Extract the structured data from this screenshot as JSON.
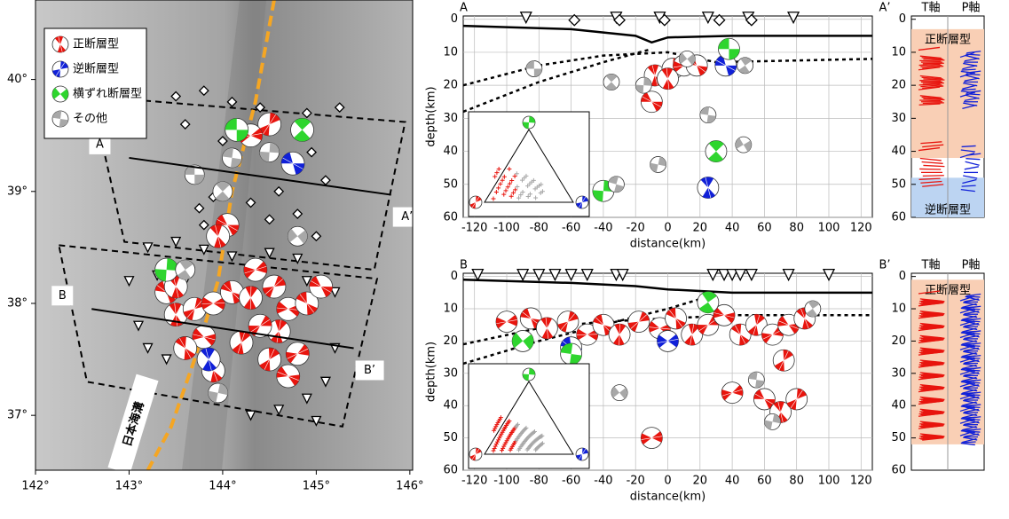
{
  "map": {
    "xlim": [
      142,
      146.03
    ],
    "ylim": [
      36.51,
      40.71
    ],
    "xticks": [
      {
        "value": 142,
        "label": "142°"
      },
      {
        "value": 143,
        "label": "143°"
      },
      {
        "value": 144,
        "label": "144°"
      },
      {
        "value": 145,
        "label": "145°"
      },
      {
        "value": 146,
        "label": "146°"
      }
    ],
    "yticks": [
      {
        "value": 37,
        "label": "37°"
      },
      {
        "value": 38,
        "label": "38°"
      },
      {
        "value": 39,
        "label": "39°"
      },
      {
        "value": 40,
        "label": "40°"
      }
    ],
    "legend": [
      {
        "label": "正断層型",
        "color": "#e8150e"
      },
      {
        "label": "逆断層型",
        "color": "#1020d8"
      },
      {
        "label": "横ずれ断層型",
        "color": "#2ed52e"
      },
      {
        "label": "その他",
        "color": "#a8a8a8"
      }
    ],
    "trench_label": "日本海溝",
    "profiles": [
      {
        "start": "A",
        "end": "A’",
        "from": [
          143,
          39.3
        ],
        "to": [
          145.8,
          38.97
        ]
      },
      {
        "start": "B",
        "end": "B’",
        "from": [
          142.6,
          37.95
        ],
        "to": [
          145.4,
          37.6
        ]
      }
    ],
    "boxes": [
      [
        [
          142.6,
          39.85
        ],
        [
          145.95,
          39.62
        ],
        [
          145.62,
          38.3
        ],
        [
          142.95,
          38.55
        ]
      ],
      [
        [
          142.25,
          38.52
        ],
        [
          145.65,
          38.22
        ],
        [
          145.28,
          36.9
        ],
        [
          142.55,
          37.3
        ]
      ]
    ],
    "trench": [
      [
        144.55,
        40.71
      ],
      [
        144.35,
        39.8
      ],
      [
        144.1,
        39.0
      ],
      [
        143.95,
        38.2
      ],
      [
        143.7,
        37.5
      ],
      [
        143.45,
        36.9
      ],
      [
        143.2,
        36.51
      ]
    ],
    "events": {
      "normal": [
        [
          144.05,
          38.7
        ],
        [
          143.95,
          38.6
        ],
        [
          144.5,
          39.6
        ],
        [
          144.3,
          39.5
        ],
        [
          143.4,
          38.1
        ],
        [
          143.5,
          37.9
        ],
        [
          143.7,
          37.95
        ],
        [
          143.9,
          38.0
        ],
        [
          144.1,
          38.1
        ],
        [
          144.3,
          38.05
        ],
        [
          144.55,
          38.15
        ],
        [
          144.7,
          37.95
        ],
        [
          144.9,
          38.0
        ],
        [
          144.6,
          37.75
        ],
        [
          144.4,
          37.8
        ],
        [
          143.8,
          37.7
        ],
        [
          143.6,
          37.6
        ],
        [
          144.2,
          37.65
        ],
        [
          144.8,
          37.55
        ],
        [
          144.7,
          37.35
        ],
        [
          143.9,
          37.4
        ],
        [
          144.5,
          37.5
        ],
        [
          144.35,
          38.3
        ],
        [
          145.05,
          38.15
        ],
        [
          143.5,
          38.15
        ]
      ],
      "reverse": [
        [
          144.75,
          39.25
        ],
        [
          143.85,
          37.5
        ]
      ],
      "strike_slip": [
        [
          144.15,
          39.55
        ],
        [
          144.85,
          39.55
        ],
        [
          143.4,
          38.3
        ]
      ],
      "other": [
        [
          143.7,
          39.15
        ],
        [
          144.0,
          39.0
        ],
        [
          144.5,
          39.35
        ],
        [
          144.8,
          38.6
        ],
        [
          144.1,
          39.3
        ],
        [
          143.6,
          38.3
        ],
        [
          143.95,
          37.2
        ]
      ]
    },
    "stations": [
      [
        143.2,
        38.5
      ],
      [
        143.5,
        38.55
      ],
      [
        143.8,
        38.48
      ],
      [
        144.1,
        38.42
      ],
      [
        144.5,
        38.45
      ],
      [
        144.8,
        38.4
      ],
      [
        143.0,
        38.2
      ],
      [
        143.3,
        38.25
      ],
      [
        143.6,
        38.2
      ],
      [
        144.9,
        38.2
      ],
      [
        145.2,
        38.1
      ],
      [
        143.1,
        37.8
      ],
      [
        145.2,
        37.6
      ],
      [
        145.1,
        37.3
      ],
      [
        144.9,
        37.15
      ],
      [
        144.6,
        37.05
      ],
      [
        144.3,
        37.0
      ],
      [
        145.0,
        36.95
      ],
      [
        143.4,
        37.5
      ],
      [
        143.2,
        37.6
      ]
    ],
    "diamonds": [
      [
        143.5,
        39.85
      ],
      [
        143.8,
        39.9
      ],
      [
        144.1,
        39.8
      ],
      [
        144.4,
        39.75
      ],
      [
        144.9,
        39.7
      ],
      [
        145.25,
        39.75
      ],
      [
        143.6,
        39.6
      ],
      [
        144.0,
        39.45
      ],
      [
        144.95,
        39.35
      ],
      [
        145.1,
        39.1
      ],
      [
        144.6,
        39.0
      ],
      [
        143.9,
        38.95
      ],
      [
        143.75,
        38.85
      ],
      [
        144.3,
        38.9
      ],
      [
        144.8,
        38.8
      ],
      [
        143.8,
        38.7
      ],
      [
        144.5,
        38.75
      ],
      [
        145.0,
        38.6
      ]
    ]
  },
  "sections": [
    {
      "start": "A",
      "end": "A’",
      "xlabel": "distance(km)",
      "ylabel": "depth(km)",
      "xlim": [
        -127,
        127
      ],
      "ylim": [
        -1,
        60
      ],
      "xticks": [
        -120,
        -100,
        -80,
        -60,
        -40,
        -20,
        0,
        20,
        40,
        60,
        80,
        100,
        120
      ],
      "yticks": [
        0,
        10,
        20,
        30,
        40,
        50,
        60
      ],
      "profile": [
        [
          -127,
          2
        ],
        [
          -60,
          3
        ],
        [
          -20,
          5
        ],
        [
          -10,
          7
        ],
        [
          0,
          5.5
        ],
        [
          40,
          5
        ],
        [
          127,
          5
        ]
      ],
      "slabs": [
        [
          [
            -127,
            20
          ],
          [
            -80,
            14
          ],
          [
            -40,
            11
          ],
          [
            0,
            10
          ],
          [
            30,
            13
          ],
          [
            127,
            12
          ]
        ],
        [
          [
            -127,
            28
          ],
          [
            -80,
            19
          ],
          [
            -40,
            13
          ],
          [
            -10,
            9
          ]
        ]
      ],
      "stations": [
        -88,
        -32,
        -5,
        25,
        50,
        78
      ],
      "diamonds": [
        -58,
        -30,
        -2,
        32,
        52
      ],
      "events": {
        "normal": [
          [
            -10,
            25
          ],
          [
            -8,
            17
          ],
          [
            3,
            15
          ],
          [
            10,
            14
          ],
          [
            18,
            14
          ],
          [
            0,
            18
          ]
        ],
        "reverse": [
          [
            36,
            14
          ],
          [
            25,
            51
          ]
        ],
        "strike_slip": [
          [
            38,
            9
          ],
          [
            30,
            40
          ],
          [
            -40,
            52
          ]
        ],
        "other": [
          [
            -83,
            15
          ],
          [
            -35,
            19
          ],
          [
            -15,
            20
          ],
          [
            12,
            12
          ],
          [
            25,
            29
          ],
          [
            48,
            14
          ],
          [
            -6,
            44
          ],
          [
            47,
            38
          ],
          [
            -32,
            50
          ]
        ]
      },
      "axes_panel": {
        "t_label": "T軸",
        "p_label": "P軸",
        "zones": [
          {
            "label": "正断層型",
            "from": 3,
            "to": 42,
            "color": "#f9cfb5"
          },
          {
            "label": "逆断層型",
            "from": 48,
            "to": 60,
            "color": "#bcd4f2"
          }
        ]
      }
    },
    {
      "start": "B",
      "end": "B’",
      "xlabel": "distance(km)",
      "ylabel": "depth(km)",
      "xlim": [
        -127,
        127
      ],
      "ylim": [
        -1,
        60
      ],
      "xticks": [
        -120,
        -100,
        -80,
        -60,
        -40,
        -20,
        0,
        20,
        40,
        60,
        80,
        100,
        120
      ],
      "yticks": [
        0,
        10,
        20,
        30,
        40,
        50,
        60
      ],
      "profile": [
        [
          -127,
          1
        ],
        [
          -60,
          2
        ],
        [
          -20,
          3
        ],
        [
          0,
          4
        ],
        [
          40,
          5
        ],
        [
          127,
          5
        ]
      ],
      "slabs": [
        [
          [
            -127,
            21
          ],
          [
            -80,
            16
          ],
          [
            -40,
            14
          ],
          [
            0,
            13
          ],
          [
            40,
            12
          ],
          [
            127,
            12
          ]
        ],
        [
          [
            -127,
            27
          ],
          [
            -80,
            20
          ],
          [
            -40,
            15
          ],
          [
            0,
            10
          ],
          [
            20,
            7
          ]
        ]
      ],
      "stations": [
        -118,
        -90,
        -80,
        -70,
        -60,
        -50,
        -32,
        -28,
        28,
        35,
        40,
        45,
        52,
        75,
        100
      ],
      "diamonds": [],
      "events": {
        "normal": [
          [
            -100,
            14
          ],
          [
            -85,
            13
          ],
          [
            -75,
            16
          ],
          [
            -62,
            14
          ],
          [
            -50,
            18
          ],
          [
            -40,
            15
          ],
          [
            -30,
            18
          ],
          [
            -18,
            14
          ],
          [
            -5,
            16
          ],
          [
            5,
            13
          ],
          [
            15,
            18
          ],
          [
            25,
            15
          ],
          [
            35,
            12
          ],
          [
            45,
            18
          ],
          [
            55,
            15
          ],
          [
            65,
            18
          ],
          [
            75,
            15
          ],
          [
            85,
            13
          ],
          [
            72,
            26
          ],
          [
            40,
            36
          ],
          [
            60,
            38
          ],
          [
            70,
            42
          ],
          [
            80,
            38
          ],
          [
            -10,
            50
          ]
        ],
        "reverse": [
          [
            0,
            20
          ],
          [
            -60,
            22
          ]
        ],
        "strike_slip": [
          [
            -90,
            20
          ],
          [
            -60,
            24
          ],
          [
            25,
            8
          ]
        ],
        "other": [
          [
            -30,
            36
          ],
          [
            55,
            32
          ],
          [
            90,
            10
          ],
          [
            65,
            45
          ]
        ]
      },
      "axes_panel": {
        "t_label": "T軸",
        "p_label": "P軸",
        "zones": [
          {
            "label": "正断層型",
            "from": 1,
            "to": 52,
            "color": "#f9cfb5"
          }
        ]
      }
    }
  ]
}
